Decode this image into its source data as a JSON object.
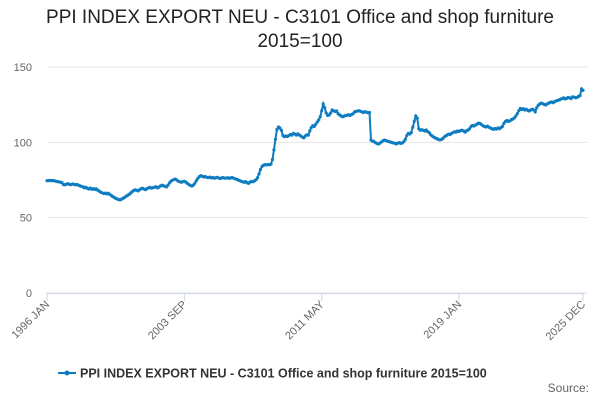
{
  "chart_data": {
    "type": "line",
    "title": "PPI INDEX EXPORT NEU - C3101 Office and shop furniture 2015=100",
    "source": "Source:",
    "categories": [
      "1996 JAN",
      null,
      null,
      null,
      null,
      null,
      null,
      null,
      null,
      null,
      null,
      null,
      null,
      null,
      null,
      null,
      null,
      null,
      null,
      null,
      null,
      null,
      null,
      null,
      null,
      null,
      null,
      null,
      null,
      null,
      null,
      null,
      null,
      null,
      null,
      null,
      null,
      null,
      null,
      null,
      null,
      null,
      null,
      null,
      null,
      null,
      null,
      null,
      null,
      null,
      null,
      null,
      null,
      null,
      null,
      null,
      null,
      null,
      null,
      null,
      null,
      null,
      null,
      null,
      null,
      null,
      null,
      null,
      null,
      null,
      null,
      null,
      null,
      null,
      null,
      null,
      null,
      null,
      null,
      null,
      null,
      null,
      null,
      null,
      null,
      null,
      null,
      null,
      null,
      null,
      null,
      null,
      "2003 SEP",
      null,
      null,
      null,
      null,
      null,
      null,
      null,
      null,
      null,
      null,
      null,
      null,
      null,
      null,
      null,
      null,
      null,
      null,
      null,
      null,
      null,
      null,
      null,
      null,
      null,
      null,
      null,
      null,
      null,
      null,
      null,
      null,
      null,
      null,
      null,
      null,
      null,
      null,
      null,
      null,
      null,
      null,
      null,
      null,
      null,
      null,
      null,
      null,
      null,
      null,
      null,
      null,
      null,
      null,
      null,
      null,
      null,
      null,
      null,
      null,
      null,
      null,
      null,
      null,
      null,
      null,
      null,
      null,
      null,
      null,
      null,
      null,
      null,
      null,
      null,
      null,
      null,
      null,
      null,
      null,
      null,
      null,
      null,
      null,
      null,
      null,
      null,
      null,
      null,
      null,
      null,
      "2011 MAY",
      null,
      null,
      null,
      null,
      null,
      null,
      null,
      null,
      null,
      null,
      null,
      null,
      null,
      null,
      null,
      null,
      null,
      null,
      null,
      null,
      null,
      null,
      null,
      null,
      null,
      null,
      null,
      null,
      null,
      null,
      null,
      null,
      null,
      null,
      null,
      null,
      null,
      null,
      null,
      null,
      null,
      null,
      null,
      null,
      null,
      null,
      null,
      null,
      null,
      null,
      null,
      null,
      null,
      null,
      null,
      null,
      null,
      null,
      null,
      null,
      null,
      null,
      null,
      null,
      null,
      null,
      null,
      null,
      null,
      null,
      null,
      null,
      null,
      null,
      null,
      null,
      null,
      null,
      null,
      null,
      null,
      null,
      null,
      null,
      null,
      null,
      null,
      null,
      null,
      null,
      null,
      "2019 JAN",
      null,
      null,
      null,
      null,
      null,
      null,
      null,
      null,
      null,
      null,
      null,
      null,
      null,
      null,
      null,
      null,
      null,
      null,
      null,
      null,
      null,
      null,
      null,
      null,
      null,
      null,
      null,
      null,
      null,
      null,
      null,
      null,
      null,
      null,
      null,
      null,
      null,
      null,
      null,
      null,
      null,
      null,
      null,
      null,
      null,
      null,
      null,
      null,
      null,
      null,
      null,
      null,
      null,
      null,
      null,
      null,
      null,
      null,
      null,
      null,
      null,
      null,
      null,
      null,
      null,
      null,
      null,
      null,
      null,
      null,
      null,
      null,
      null,
      null,
      null,
      null,
      null,
      null,
      null,
      null,
      null,
      null,
      "2025 DEC"
    ],
    "series": [
      {
        "name": "PPI INDEX EXPORT NEU - C3101 Office and shop furniture 2015=100",
        "color": "#0e7cc1",
        "values": [
          74.5,
          74.6,
          74.8,
          74.5,
          74.7,
          74.4,
          74.2,
          73.9,
          73.8,
          73.5,
          73.2,
          72.0,
          71.8,
          72.3,
          72.5,
          72.1,
          71.9,
          72.4,
          72.2,
          71.8,
          72.0,
          71.6,
          71.2,
          70.8,
          70.5,
          69.8,
          70.2,
          69.5,
          69.0,
          69.6,
          68.9,
          69.3,
          68.7,
          69.1,
          68.2,
          67.6,
          66.9,
          66.5,
          66.0,
          66.3,
          65.8,
          66.2,
          65.5,
          64.8,
          64.0,
          63.5,
          62.8,
          62.4,
          62.0,
          61.8,
          62.3,
          62.9,
          63.5,
          64.2,
          64.8,
          65.5,
          66.3,
          67.2,
          68.0,
          68.5,
          68.2,
          67.8,
          68.5,
          69.2,
          69.5,
          69.0,
          68.6,
          69.3,
          69.8,
          70.1,
          69.6,
          69.9,
          70.2,
          70.5,
          69.8,
          70.3,
          71.0,
          71.5,
          71.2,
          70.8,
          70.4,
          71.5,
          73.0,
          74.2,
          74.8,
          75.3,
          75.6,
          74.9,
          74.2,
          73.8,
          73.5,
          73.9,
          74.1,
          73.6,
          72.8,
          72.0,
          71.4,
          71.0,
          71.6,
          72.8,
          74.5,
          76.0,
          77.2,
          77.8,
          77.5,
          77.0,
          77.3,
          76.8,
          76.6,
          76.9,
          76.4,
          76.7,
          76.2,
          76.5,
          76.8,
          76.3,
          76.0,
          76.4,
          76.6,
          76.2,
          76.3,
          76.5,
          76.1,
          76.4,
          76.6,
          76.2,
          75.8,
          75.5,
          75.0,
          74.6,
          74.2,
          73.8,
          73.5,
          73.9,
          73.2,
          72.8,
          73.6,
          74.1,
          73.8,
          74.4,
          75.2,
          76.5,
          79.0,
          82.0,
          84.0,
          84.8,
          85.2,
          85.0,
          85.3,
          85.1,
          85.5,
          88.5,
          95.0,
          102.0,
          108.5,
          110.2,
          109.5,
          108.0,
          104.5,
          103.8,
          104.2,
          103.9,
          104.5,
          105.2,
          104.8,
          106.0,
          105.5,
          104.8,
          105.6,
          104.9,
          104.2,
          103.5,
          103.0,
          104.2,
          105.0,
          104.8,
          107.5,
          109.8,
          111.0,
          110.5,
          112.0,
          113.5,
          114.8,
          117.0,
          121.0,
          125.5,
          123.0,
          119.5,
          117.8,
          118.2,
          119.5,
          121.5,
          121.0,
          120.5,
          120.8,
          119.0,
          118.2,
          117.5,
          117.0,
          117.4,
          117.8,
          118.0,
          118.3,
          117.9,
          118.5,
          119.0,
          120.2,
          120.5,
          120.8,
          121.0,
          120.6,
          120.2,
          119.8,
          120.3,
          120.0,
          119.6,
          119.8,
          101.5,
          100.8,
          100.5,
          99.8,
          99.2,
          98.9,
          99.5,
          100.2,
          101.0,
          101.5,
          101.2,
          100.8,
          100.5,
          100.2,
          99.8,
          99.6,
          99.4,
          99.0,
          99.5,
          99.8,
          99.3,
          99.6,
          100.5,
          102.0,
          104.5,
          106.0,
          105.5,
          106.5,
          110.0,
          114.0,
          117.5,
          116.0,
          109.0,
          108.0,
          108.4,
          108.0,
          107.5,
          108.2,
          107.0,
          106.5,
          105.0,
          104.2,
          103.5,
          103.0,
          102.5,
          102.0,
          101.6,
          101.8,
          102.5,
          103.5,
          104.2,
          104.8,
          105.5,
          105.2,
          106.0,
          106.5,
          107.0,
          106.8,
          107.5,
          107.2,
          107.8,
          108.0,
          107.5,
          106.8,
          107.6,
          108.2,
          109.0,
          110.5,
          111.2,
          110.8,
          111.5,
          112.0,
          112.8,
          112.5,
          111.8,
          111.0,
          110.5,
          110.2,
          110.8,
          110.0,
          109.5,
          109.0,
          108.6,
          109.2,
          108.8,
          109.5,
          109.0,
          109.8,
          110.5,
          112.5,
          113.8,
          114.5,
          113.9,
          114.2,
          115.0,
          115.5,
          116.2,
          117.5,
          119.0,
          121.0,
          122.5,
          121.8,
          122.3,
          121.5,
          122.0,
          121.2,
          120.8,
          121.5,
          122.0,
          121.5,
          120.2,
          123.0,
          124.5,
          125.5,
          126.0,
          125.6,
          125.2,
          124.8,
          125.5,
          126.0,
          126.5,
          126.8,
          126.3,
          127.0,
          127.5,
          127.8,
          128.2,
          128.6,
          129.0,
          129.5,
          128.8,
          129.2,
          129.8,
          129.5,
          129.0,
          130.2,
          130.0,
          129.6,
          129.8,
          130.5,
          131.0,
          135.5,
          134.5
        ]
      }
    ],
    "ylim": [
      0,
      150
    ],
    "yticks": [
      0,
      50,
      100,
      150
    ],
    "grid": true
  }
}
